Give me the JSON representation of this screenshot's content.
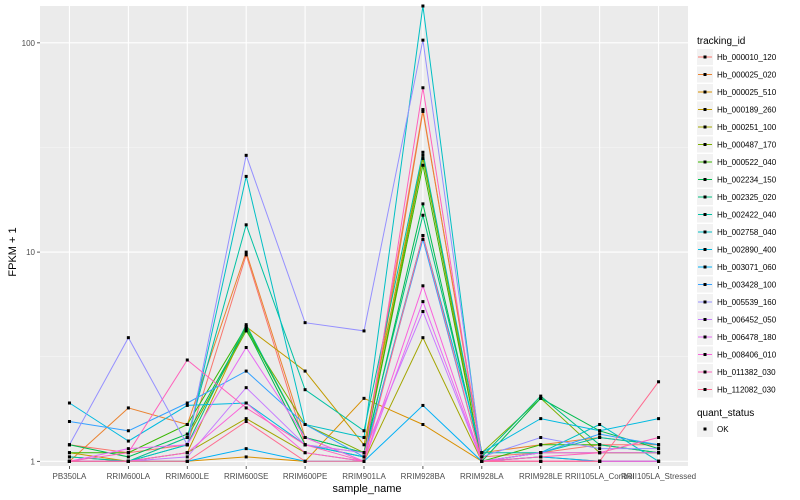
{
  "chart_data": {
    "type": "line",
    "title": "",
    "xlabel": "sample_name",
    "ylabel": "FPKM + 1",
    "yscale": "log",
    "ylim": [
      0.95,
      150
    ],
    "yticks": [
      1,
      10,
      100
    ],
    "ytick_labels": [
      "1",
      "10",
      "100"
    ],
    "grid": true,
    "legend_position": "right",
    "categories": [
      "PB350LA",
      "RRIM600LA",
      "RRIM600LE",
      "RRIM600SE",
      "RRIM600PE",
      "RRIM901LA",
      "RRIM928BA",
      "RRIM928LA",
      "RRIM928LE",
      "RRII105LA_Control",
      "RRII105LA_Stressed"
    ],
    "legend_title": "tracking_id",
    "series": [
      {
        "name": "Hb_000010_120",
        "color": "#F8766D",
        "values": [
          1.2,
          1.1,
          1.2,
          9.7,
          1.2,
          1.1,
          48,
          1.05,
          1.1,
          1.2,
          1.2
        ]
      },
      {
        "name": "Hb_000025_020",
        "color": "#EA8331",
        "values": [
          1.0,
          1.8,
          1.5,
          10,
          1.3,
          1.0,
          47,
          1.1,
          1.2,
          1.3,
          1.2
        ]
      },
      {
        "name": "Hb_000025_510",
        "color": "#D89000",
        "values": [
          1.0,
          1.0,
          1.0,
          1.05,
          1.0,
          2.0,
          1.5,
          1.0,
          1.0,
          1.0,
          1.0
        ]
      },
      {
        "name": "Hb_000189_260",
        "color": "#C09B00",
        "values": [
          1.1,
          1.0,
          1.1,
          4.4,
          2.7,
          1.2,
          29,
          1.0,
          1.1,
          1.1,
          1.1
        ]
      },
      {
        "name": "Hb_000251_100",
        "color": "#A3A500",
        "values": [
          1.0,
          1.0,
          1.1,
          1.6,
          1.1,
          1.0,
          3.9,
          1.0,
          1.05,
          1.0,
          1.0
        ]
      },
      {
        "name": "Hb_000487_170",
        "color": "#7CAE00",
        "values": [
          1.05,
          1.0,
          1.3,
          4.2,
          1.5,
          1.1,
          28,
          1.1,
          2.0,
          1.1,
          1.1
        ]
      },
      {
        "name": "Hb_000522_040",
        "color": "#39B600",
        "values": [
          1.1,
          1.1,
          1.5,
          4.4,
          1.3,
          1.1,
          26,
          1.0,
          1.2,
          1.2,
          1.1
        ]
      },
      {
        "name": "Hb_002234_150",
        "color": "#00BB4E",
        "values": [
          1.2,
          1.05,
          1.35,
          4.3,
          1.2,
          1.05,
          17,
          1.0,
          2.0,
          1.4,
          1.15
        ]
      },
      {
        "name": "Hb_002325_020",
        "color": "#00BF7D",
        "values": [
          1.0,
          1.0,
          1.2,
          4.5,
          1.3,
          1.1,
          15,
          1.05,
          2.05,
          1.2,
          1.1
        ]
      },
      {
        "name": "Hb_002422_040",
        "color": "#00C1A3",
        "values": [
          1.05,
          1.0,
          1.3,
          13.5,
          2.2,
          1.4,
          30,
          1.1,
          1.1,
          1.3,
          1.2
        ]
      },
      {
        "name": "Hb_002758_040",
        "color": "#00BFC4",
        "values": [
          1.0,
          1.0,
          1.2,
          23,
          1.5,
          1.3,
          150,
          1.0,
          1.1,
          1.5,
          1.0
        ]
      },
      {
        "name": "Hb_002890_400",
        "color": "#00BAE0",
        "values": [
          1.9,
          1.25,
          1.85,
          1.9,
          1.2,
          1.05,
          12,
          1.1,
          1.6,
          1.4,
          1.6
        ]
      },
      {
        "name": "Hb_003071_060",
        "color": "#00B0F6",
        "values": [
          1.0,
          1.0,
          1.0,
          1.15,
          1.0,
          1.0,
          1.85,
          1.0,
          1.05,
          1.0,
          1.0
        ]
      },
      {
        "name": "Hb_003428_100",
        "color": "#35A2FF",
        "values": [
          1.55,
          1.4,
          1.9,
          2.7,
          1.5,
          1.05,
          11.5,
          1.0,
          1.1,
          1.35,
          1.2
        ]
      },
      {
        "name": "Hb_005539_160",
        "color": "#9590FF",
        "values": [
          1.2,
          3.9,
          1.2,
          29,
          4.6,
          4.2,
          103,
          1.05,
          1.3,
          1.15,
          1.15
        ]
      },
      {
        "name": "Hb_006452_050",
        "color": "#C77CFF",
        "values": [
          1.0,
          1.0,
          1.05,
          2.25,
          1.2,
          1.1,
          5.2,
          1.0,
          1.0,
          1.0,
          1.0
        ]
      },
      {
        "name": "Hb_006478_180",
        "color": "#E76BF3",
        "values": [
          1.0,
          1.15,
          1.2,
          3.5,
          1.3,
          1.0,
          5.8,
          1.0,
          1.1,
          1.1,
          1.1
        ]
      },
      {
        "name": "Hb_008406_010",
        "color": "#FA62DB",
        "values": [
          1.0,
          1.0,
          1.1,
          1.9,
          1.1,
          1.0,
          6.9,
          1.0,
          1.0,
          1.0,
          1.0
        ]
      },
      {
        "name": "Hb_011382_030",
        "color": "#FF62BC",
        "values": [
          1.0,
          1.1,
          3.05,
          1.8,
          1.2,
          1.0,
          61,
          1.0,
          1.05,
          1.1,
          1.3
        ]
      },
      {
        "name": "Hb_112082_030",
        "color": "#FF6C91",
        "values": [
          1.0,
          1.0,
          1.0,
          1.55,
          1.0,
          1.0,
          12,
          1.0,
          1.0,
          1.0,
          2.4
        ]
      }
    ],
    "shape_legend_title": "quant_status",
    "shape_legend_items": [
      "OK"
    ],
    "colors": {
      "panel_bg": "#EBEBEB",
      "grid_major": "#FFFFFF",
      "point": "#000000"
    }
  }
}
